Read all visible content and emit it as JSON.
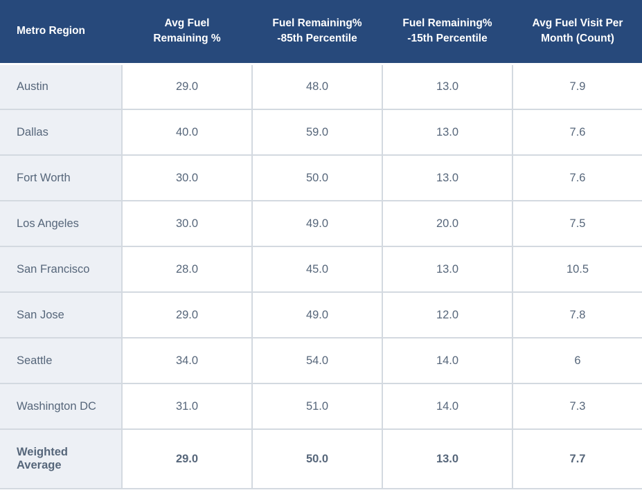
{
  "colors": {
    "header_bg": "#27497B",
    "header_text": "#FFFFFF",
    "row_label_bg": "#EDF0F5",
    "cell_bg": "#FFFFFF",
    "border": "#D3D9E0",
    "text": "#56667A"
  },
  "chart_data": {
    "type": "table",
    "columns": [
      "Metro Region",
      "Avg Fuel\nRemaining %",
      "Fuel Remaining%\n-85th Percentile",
      "Fuel Remaining%\n-15th Percentile",
      "Avg Fuel Visit Per\nMonth (Count)"
    ],
    "rows": [
      {
        "region": "Austin",
        "values": [
          "29.0",
          "48.0",
          "13.0",
          "7.9"
        ]
      },
      {
        "region": "Dallas",
        "values": [
          "40.0",
          "59.0",
          "13.0",
          "7.6"
        ]
      },
      {
        "region": "Fort Worth",
        "values": [
          "30.0",
          "50.0",
          "13.0",
          "7.6"
        ]
      },
      {
        "region": "Los Angeles",
        "values": [
          "30.0",
          "49.0",
          "20.0",
          "7.5"
        ]
      },
      {
        "region": "San Francisco",
        "values": [
          "28.0",
          "45.0",
          "13.0",
          "10.5"
        ]
      },
      {
        "region": "San Jose",
        "values": [
          "29.0",
          "49.0",
          "12.0",
          "7.8"
        ]
      },
      {
        "region": "Seattle",
        "values": [
          "34.0",
          "54.0",
          "14.0",
          "6"
        ]
      },
      {
        "region": "Washington DC",
        "values": [
          "31.0",
          "51.0",
          "14.0",
          "7.3"
        ]
      }
    ],
    "summary_row": {
      "region": "Weighted Average",
      "values": [
        "29.0",
        "50.0",
        "13.0",
        "7.7"
      ]
    }
  }
}
